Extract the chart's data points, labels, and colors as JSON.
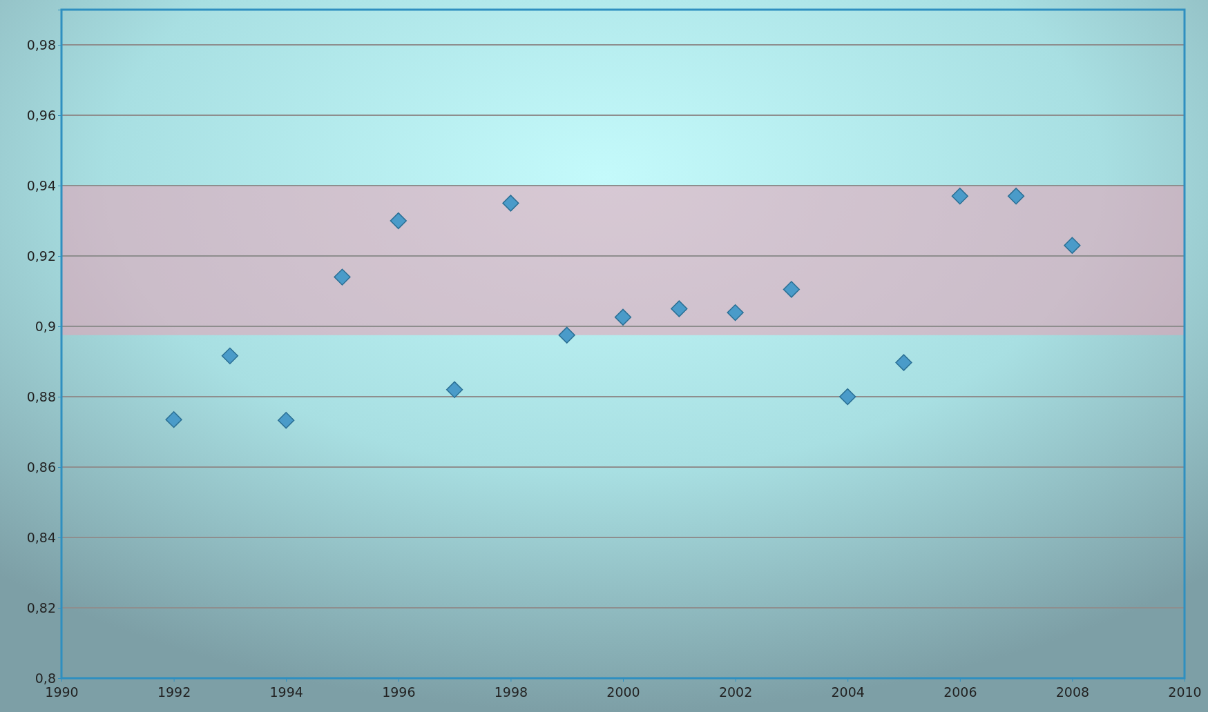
{
  "chart_data": {
    "type": "scatter",
    "x": [
      1992,
      1993,
      1994,
      1995,
      1996,
      1997,
      1998,
      1999,
      2000,
      2001,
      2002,
      2003,
      2004,
      2005,
      2006,
      2007,
      2008
    ],
    "series": [
      {
        "color": "#4a9bc9",
        "values": [
          0.8735,
          0.8916,
          0.8733,
          0.914,
          0.93,
          0.882,
          0.935,
          0.8975,
          0.9026,
          0.905,
          0.9039,
          0.9105,
          0.88,
          0.8897,
          0.937,
          0.937,
          0.923
        ]
      }
    ],
    "xlim": [
      1990,
      2010
    ],
    "xticks": [
      1990,
      1992,
      1994,
      1996,
      1998,
      2000,
      2002,
      2004,
      2006,
      2008,
      2010
    ],
    "ylim": [
      0.8,
      0.99
    ],
    "yticks": [
      {
        "value": 0.8,
        "label": "0,8"
      },
      {
        "value": 0.82,
        "label": "0,82"
      },
      {
        "value": 0.84,
        "label": "0,84"
      },
      {
        "value": 0.86,
        "label": "0,86"
      },
      {
        "value": 0.88,
        "label": "0,88"
      },
      {
        "value": 0.9,
        "label": "0,9"
      },
      {
        "value": 0.92,
        "label": "0,92"
      },
      {
        "value": 0.94,
        "label": "0,94"
      },
      {
        "value": 0.96,
        "label": "0,96"
      },
      {
        "value": 0.98,
        "label": "0,98"
      }
    ],
    "bands": [
      {
        "axis": "y",
        "from": 0.8975,
        "to": 0.94,
        "color": "#e8a0b4"
      }
    ],
    "grid": "y",
    "marker": "diamond"
  }
}
